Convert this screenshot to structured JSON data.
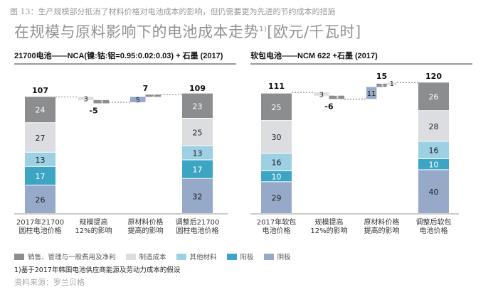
{
  "figure_caption": "图 13：生产规模部分抵消了材料价格对电池成本的影响，但仍需要更为先进的节约成本的措施",
  "title": "在规模与原料影响下的电池成本走势",
  "title_sup": "1)",
  "title_unit": "[欧元/千瓦时]",
  "legend": [
    {
      "key": "sga",
      "label": "销售、管理与一般费用及净利",
      "color": "#8b8d8f"
    },
    {
      "key": "manuf",
      "label": "制造成本",
      "color": "#dcdde0"
    },
    {
      "key": "other",
      "label": "其他材料",
      "color": "#9dd0e2"
    },
    {
      "key": "anode",
      "label": "阳极",
      "color": "#3ca5c4"
    },
    {
      "key": "cathode",
      "label": "阴极",
      "color": "#97a9c9"
    }
  ],
  "footnote": "1)基于2017年韩国电池供应商能源及劳动力成本的假设",
  "source": "资料来源：罗兰贝格",
  "chart_data": [
    {
      "type": "bar",
      "subtitle": "21700电池——NCA(镍:钴:铝=0.95:0.02:0.03) + 石墨 (2017)",
      "categories": [
        "2017年21700\n圆柱电池价格",
        "规模提高\n12%的影响",
        "原材料价格\n提高的影响",
        "调整后21700\n圆柱电池价格"
      ],
      "stack_order": [
        "cathode",
        "anode",
        "other",
        "manuf",
        "sga"
      ],
      "start": {
        "total": 107,
        "values": {
          "cathode": 26,
          "anode": 17,
          "other": 13,
          "manuf": 27,
          "sga": 24
        }
      },
      "steps": [
        {
          "total": -5,
          "segments": [
            {
              "key": "manuf",
              "value": -3
            },
            {
              "key": "sga",
              "value": -3
            }
          ]
        },
        {
          "total": 7,
          "segments": [
            {
              "key": "cathode",
              "value": 5
            },
            {
              "key": "sga",
              "value": 2
            }
          ]
        }
      ],
      "end": {
        "total": 109,
        "values": {
          "cathode": 32,
          "anode": 17,
          "other": 13,
          "manuf": 25,
          "sga": 23
        }
      }
    },
    {
      "type": "bar",
      "subtitle": "软包电池——NCM 622 +石墨 (2017)",
      "categories": [
        "2017年软包\n电池价格",
        "规模提高\n12%的影响",
        "原材料价格\n提高的影响",
        "调整后软包\n电池价格"
      ],
      "stack_order": [
        "cathode",
        "anode",
        "other",
        "manuf",
        "sga"
      ],
      "start": {
        "total": 111,
        "values": {
          "cathode": 29,
          "anode": 10,
          "other": 16,
          "manuf": 30,
          "sga": 25
        }
      },
      "steps": [
        {
          "total": -6,
          "segments": [
            {
              "key": "manuf",
              "value": -3
            },
            {
              "key": "sga",
              "value": -3
            }
          ]
        },
        {
          "total": 15,
          "segments": [
            {
              "key": "cathode",
              "value": 11
            },
            {
              "key": "sga",
              "value": 3
            },
            {
              "key": "manuf",
              "value": 1
            }
          ]
        }
      ],
      "end": {
        "total": 120,
        "values": {
          "cathode": 40,
          "anode": 10,
          "other": 16,
          "manuf": 28,
          "sga": 26
        }
      }
    }
  ]
}
